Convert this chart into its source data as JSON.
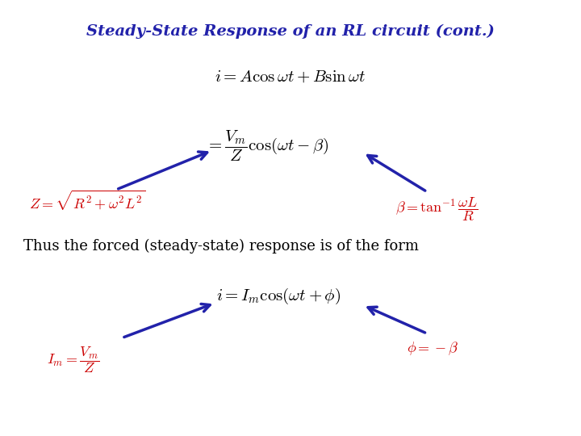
{
  "title": "Steady-State Response of an RL circuit (cont.)",
  "title_color": "#2222AA",
  "title_fontsize": 14,
  "background_color": "#ffffff",
  "blue_dark": "#2222AA",
  "red_color": "#CC0000",
  "black_color": "#000000",
  "arrow_color": "#2222AA",
  "text_thus": "Thus the forced (steady-state) response is of the form"
}
